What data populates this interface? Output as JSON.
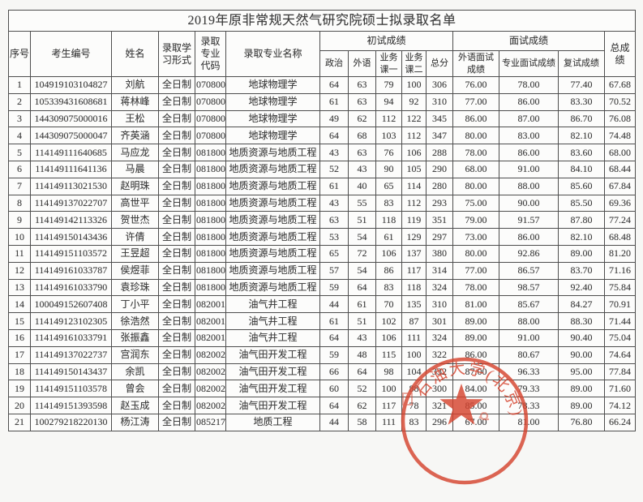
{
  "page": {
    "title": "2019年原非常规天然气研究院硕士拟录取名单"
  },
  "table": {
    "headers": {
      "seq": "序号",
      "candidate_id": "考生编号",
      "name": "姓名",
      "study_form": "录取学习形式",
      "major_code": "录取专业代码",
      "major_name": "录取专业名称",
      "initial_exam_group": "初试成绩",
      "politics": "政治",
      "foreign_language": "外语",
      "course_one": "业务课一",
      "course_two": "业务课二",
      "initial_total": "总分",
      "interview_group": "面试成绩",
      "foreign_interview": "外语面试成绩",
      "major_interview": "专业面试成绩",
      "retest_score": "复试成绩",
      "final_score": "总成绩"
    },
    "field_order": [
      "seq",
      "candidate_id",
      "name",
      "study_form",
      "major_code",
      "major_name",
      "politics",
      "foreign_language",
      "course_one",
      "course_two",
      "initial_total",
      "foreign_interview",
      "major_interview",
      "retest_score",
      "final_score"
    ],
    "rows": [
      {
        "seq": "1",
        "candidate_id": "104919103104827",
        "name": "刘航",
        "study_form": "全日制",
        "major_code": "070800",
        "major_name": "地球物理学",
        "politics": "64",
        "foreign_language": "63",
        "course_one": "79",
        "course_two": "100",
        "initial_total": "306",
        "foreign_interview": "76.00",
        "major_interview": "78.00",
        "retest_score": "77.40",
        "final_score": "67.68"
      },
      {
        "seq": "2",
        "candidate_id": "105339431608681",
        "name": "蒋林峰",
        "study_form": "全日制",
        "major_code": "070800",
        "major_name": "地球物理学",
        "politics": "61",
        "foreign_language": "63",
        "course_one": "94",
        "course_two": "92",
        "initial_total": "310",
        "foreign_interview": "77.00",
        "major_interview": "86.00",
        "retest_score": "83.30",
        "final_score": "70.52"
      },
      {
        "seq": "3",
        "candidate_id": "144309075000016",
        "name": "王松",
        "study_form": "全日制",
        "major_code": "070800",
        "major_name": "地球物理学",
        "politics": "49",
        "foreign_language": "62",
        "course_one": "112",
        "course_two": "122",
        "initial_total": "345",
        "foreign_interview": "86.00",
        "major_interview": "87.00",
        "retest_score": "86.70",
        "final_score": "76.08"
      },
      {
        "seq": "4",
        "candidate_id": "144309075000047",
        "name": "齐英涵",
        "study_form": "全日制",
        "major_code": "070800",
        "major_name": "地球物理学",
        "politics": "64",
        "foreign_language": "68",
        "course_one": "103",
        "course_two": "112",
        "initial_total": "347",
        "foreign_interview": "80.00",
        "major_interview": "83.00",
        "retest_score": "82.10",
        "final_score": "74.48"
      },
      {
        "seq": "5",
        "candidate_id": "114149111640685",
        "name": "马应龙",
        "study_form": "全日制",
        "major_code": "081800",
        "major_name": "地质资源与地质工程",
        "politics": "43",
        "foreign_language": "63",
        "course_one": "76",
        "course_two": "106",
        "initial_total": "288",
        "foreign_interview": "78.00",
        "major_interview": "86.00",
        "retest_score": "83.60",
        "final_score": "68.00"
      },
      {
        "seq": "6",
        "candidate_id": "114149111641136",
        "name": "马晨",
        "study_form": "全日制",
        "major_code": "081800",
        "major_name": "地质资源与地质工程",
        "politics": "52",
        "foreign_language": "43",
        "course_one": "90",
        "course_two": "105",
        "initial_total": "290",
        "foreign_interview": "68.00",
        "major_interview": "91.00",
        "retest_score": "84.10",
        "final_score": "68.44"
      },
      {
        "seq": "7",
        "candidate_id": "114149113021530",
        "name": "赵明珠",
        "study_form": "全日制",
        "major_code": "081800",
        "major_name": "地质资源与地质工程",
        "politics": "61",
        "foreign_language": "40",
        "course_one": "65",
        "course_two": "114",
        "initial_total": "280",
        "foreign_interview": "80.00",
        "major_interview": "88.00",
        "retest_score": "85.60",
        "final_score": "67.84"
      },
      {
        "seq": "8",
        "candidate_id": "114149137022707",
        "name": "高世平",
        "study_form": "全日制",
        "major_code": "081800",
        "major_name": "地质资源与地质工程",
        "politics": "43",
        "foreign_language": "55",
        "course_one": "83",
        "course_two": "112",
        "initial_total": "293",
        "foreign_interview": "75.00",
        "major_interview": "90.00",
        "retest_score": "85.50",
        "final_score": "69.36"
      },
      {
        "seq": "9",
        "candidate_id": "114149142113326",
        "name": "贺世杰",
        "study_form": "全日制",
        "major_code": "081800",
        "major_name": "地质资源与地质工程",
        "politics": "63",
        "foreign_language": "51",
        "course_one": "118",
        "course_two": "119",
        "initial_total": "351",
        "foreign_interview": "79.00",
        "major_interview": "91.57",
        "retest_score": "87.80",
        "final_score": "77.24"
      },
      {
        "seq": "10",
        "candidate_id": "114149150143436",
        "name": "许倩",
        "study_form": "全日制",
        "major_code": "081800",
        "major_name": "地质资源与地质工程",
        "politics": "53",
        "foreign_language": "54",
        "course_one": "61",
        "course_two": "129",
        "initial_total": "297",
        "foreign_interview": "73.00",
        "major_interview": "86.00",
        "retest_score": "82.10",
        "final_score": "68.48"
      },
      {
        "seq": "11",
        "candidate_id": "114149151103572",
        "name": "王昱超",
        "study_form": "全日制",
        "major_code": "081800",
        "major_name": "地质资源与地质工程",
        "politics": "65",
        "foreign_language": "72",
        "course_one": "106",
        "course_two": "137",
        "initial_total": "380",
        "foreign_interview": "80.00",
        "major_interview": "92.86",
        "retest_score": "89.00",
        "final_score": "81.20"
      },
      {
        "seq": "12",
        "candidate_id": "114149161033787",
        "name": "侯煜菲",
        "study_form": "全日制",
        "major_code": "081800",
        "major_name": "地质资源与地质工程",
        "politics": "57",
        "foreign_language": "54",
        "course_one": "86",
        "course_two": "117",
        "initial_total": "314",
        "foreign_interview": "77.00",
        "major_interview": "86.57",
        "retest_score": "83.70",
        "final_score": "71.16"
      },
      {
        "seq": "13",
        "candidate_id": "114149161033790",
        "name": "袁珍珠",
        "study_form": "全日制",
        "major_code": "081800",
        "major_name": "地质资源与地质工程",
        "politics": "59",
        "foreign_language": "64",
        "course_one": "83",
        "course_two": "118",
        "initial_total": "324",
        "foreign_interview": "78.00",
        "major_interview": "98.57",
        "retest_score": "92.40",
        "final_score": "75.84"
      },
      {
        "seq": "14",
        "candidate_id": "100049152607408",
        "name": "丁小平",
        "study_form": "全日制",
        "major_code": "082001",
        "major_name": "油气井工程",
        "politics": "44",
        "foreign_language": "61",
        "course_one": "70",
        "course_two": "135",
        "initial_total": "310",
        "foreign_interview": "81.00",
        "major_interview": "85.67",
        "retest_score": "84.27",
        "final_score": "70.91"
      },
      {
        "seq": "15",
        "candidate_id": "114149123102305",
        "name": "徐浩然",
        "study_form": "全日制",
        "major_code": "082001",
        "major_name": "油气井工程",
        "politics": "61",
        "foreign_language": "51",
        "course_one": "102",
        "course_two": "87",
        "initial_total": "301",
        "foreign_interview": "89.00",
        "major_interview": "88.00",
        "retest_score": "88.30",
        "final_score": "71.44"
      },
      {
        "seq": "16",
        "candidate_id": "114149161033791",
        "name": "张振鑫",
        "study_form": "全日制",
        "major_code": "082001",
        "major_name": "油气井工程",
        "politics": "64",
        "foreign_language": "43",
        "course_one": "106",
        "course_two": "111",
        "initial_total": "324",
        "foreign_interview": "89.00",
        "major_interview": "91.00",
        "retest_score": "90.40",
        "final_score": "75.04"
      },
      {
        "seq": "17",
        "candidate_id": "114149137022737",
        "name": "宫润东",
        "study_form": "全日制",
        "major_code": "082002",
        "major_name": "油气田开发工程",
        "politics": "59",
        "foreign_language": "48",
        "course_one": "115",
        "course_two": "100",
        "initial_total": "322",
        "foreign_interview": "86.00",
        "major_interview": "80.67",
        "retest_score": "90.00",
        "final_score": "74.64"
      },
      {
        "seq": "18",
        "candidate_id": "114149150143437",
        "name": "余凯",
        "study_form": "全日制",
        "major_code": "082002",
        "major_name": "油气田开发工程",
        "politics": "66",
        "foreign_language": "64",
        "course_one": "98",
        "course_two": "104",
        "initial_total": "332",
        "foreign_interview": "87.00",
        "major_interview": "96.33",
        "retest_score": "95.00",
        "final_score": "77.84"
      },
      {
        "seq": "19",
        "candidate_id": "114149151103578",
        "name": "曾会",
        "study_form": "全日制",
        "major_code": "082002",
        "major_name": "油气田开发工程",
        "politics": "60",
        "foreign_language": "52",
        "course_one": "100",
        "course_two": "88",
        "initial_total": "300",
        "foreign_interview": "84.00",
        "major_interview": "79.33",
        "retest_score": "89.00",
        "final_score": "71.60"
      },
      {
        "seq": "20",
        "candidate_id": "114149151393598",
        "name": "赵玉成",
        "study_form": "全日制",
        "major_code": "082002",
        "major_name": "油气田开发工程",
        "politics": "64",
        "foreign_language": "62",
        "course_one": "117",
        "course_two": "78",
        "initial_total": "321",
        "foreign_interview": "85.00",
        "major_interview": "78.33",
        "retest_score": "89.00",
        "final_score": "74.12"
      },
      {
        "seq": "21",
        "candidate_id": "100279218220130",
        "name": "杨江涛",
        "study_form": "全日制",
        "major_code": "085217",
        "major_name": "地质工程",
        "politics": "44",
        "foreign_language": "58",
        "course_one": "111",
        "course_two": "83",
        "initial_total": "296",
        "foreign_interview": "67.00",
        "major_interview": "81.00",
        "retest_score": "76.80",
        "final_score": "66.24"
      }
    ]
  },
  "stamp": {
    "arc_text": "石油大学(北京)",
    "color": "#d5442f"
  },
  "colors": {
    "background": "#f7f7f5",
    "table_background": "#fcfcfb",
    "border": "#4e4e4e",
    "text": "#3b3b3b",
    "stamp_red": "#d5442f"
  }
}
